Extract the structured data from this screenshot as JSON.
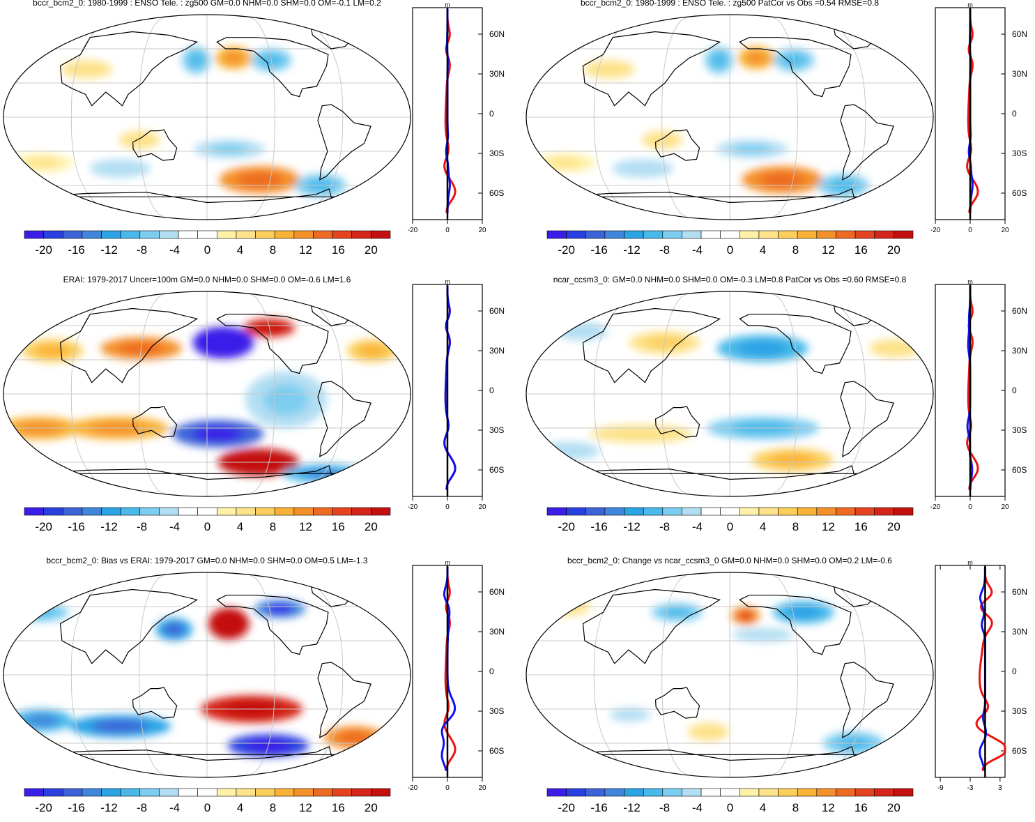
{
  "colors": {
    "frame": "#000000",
    "grid": "#c8c8c8",
    "coast": "#000000",
    "zonal_obs": "#ee1111",
    "zonal_model": "#1111ee",
    "zonal_zero": "#000000",
    "palette": [
      "#3a1ee8",
      "#2a3fe0",
      "#3c63d8",
      "#3f86dc",
      "#2ba3e5",
      "#49b9ea",
      "#7dcdf0",
      "#b2def3",
      "#ffffff",
      "#ffffff",
      "#fff2a8",
      "#fde28a",
      "#fccf5c",
      "#f9b236",
      "#f4902a",
      "#ee6a22",
      "#e54220",
      "#d52419",
      "#c40f10"
    ]
  },
  "chart_data": [
    {
      "type": "heatmap",
      "name": "bccr-hist",
      "title": "bccr_bcm2_0: 1980-1999 : ENSO Tele. : zg500 GM=0.0 NHM=0.0 SHM=0.0 OM=-0.1 LM=0.2",
      "colorbar_ticks": [
        "-20",
        "-16",
        "-12",
        "-8",
        "-4",
        "0",
        "4",
        "8",
        "12",
        "16",
        "20"
      ],
      "zonal_ticks": [
        "-20",
        "0",
        "20"
      ],
      "zonal_range": [
        -20,
        20
      ],
      "unit": "m",
      "lat_ticks": [
        "60N",
        "30N",
        "0",
        "30S",
        "60S"
      ],
      "blobs": [
        {
          "lon": 205,
          "lat": 52,
          "rx": 18,
          "ry": 10,
          "v": 8
        },
        {
          "lon": 170,
          "lat": 50,
          "rx": 14,
          "ry": 12,
          "v": -7
        },
        {
          "lon": 240,
          "lat": 50,
          "rx": 20,
          "ry": 10,
          "v": -6
        },
        {
          "lon": 70,
          "lat": 42,
          "rx": 25,
          "ry": 8,
          "v": 4
        },
        {
          "lon": 120,
          "lat": -20,
          "rx": 20,
          "ry": 8,
          "v": 4
        },
        {
          "lon": 200,
          "lat": -28,
          "rx": 35,
          "ry": 8,
          "v": -5
        },
        {
          "lon": 230,
          "lat": -55,
          "rx": 40,
          "ry": 12,
          "v": 10
        },
        {
          "lon": 290,
          "lat": -60,
          "rx": 25,
          "ry": 10,
          "v": -7
        },
        {
          "lon": 30,
          "lat": -40,
          "rx": 30,
          "ry": 8,
          "v": 3
        },
        {
          "lon": 100,
          "lat": -45,
          "rx": 30,
          "ry": 8,
          "v": -4
        }
      ]
    },
    {
      "type": "heatmap",
      "name": "bccr-fut",
      "title": "bccr_bcm2_0: 1980-1999 : ENSO Tele. : zg500 PatCor vs Obs =0.54 RMSE=0.8",
      "colorbar_ticks": [
        "-20",
        "-16",
        "-12",
        "-8",
        "-4",
        "0",
        "4",
        "8",
        "12",
        "16",
        "20"
      ],
      "zonal_ticks": [
        "-20",
        "0",
        "20"
      ],
      "zonal_range": [
        -20,
        20
      ],
      "unit": "m",
      "lat_ticks": [
        "60N",
        "30N",
        "0",
        "30S",
        "60S"
      ],
      "blobs": [
        {
          "lon": 205,
          "lat": 52,
          "rx": 18,
          "ry": 10,
          "v": 8
        },
        {
          "lon": 170,
          "lat": 50,
          "rx": 14,
          "ry": 12,
          "v": -7
        },
        {
          "lon": 240,
          "lat": 50,
          "rx": 20,
          "ry": 10,
          "v": -6
        },
        {
          "lon": 70,
          "lat": 42,
          "rx": 25,
          "ry": 8,
          "v": 4
        },
        {
          "lon": 120,
          "lat": -20,
          "rx": 20,
          "ry": 8,
          "v": 4
        },
        {
          "lon": 200,
          "lat": -28,
          "rx": 35,
          "ry": 8,
          "v": -5
        },
        {
          "lon": 230,
          "lat": -55,
          "rx": 40,
          "ry": 12,
          "v": 10
        },
        {
          "lon": 290,
          "lat": -60,
          "rx": 25,
          "ry": 10,
          "v": -7
        },
        {
          "lon": 30,
          "lat": -40,
          "rx": 30,
          "ry": 8,
          "v": 3
        },
        {
          "lon": 100,
          "lat": -45,
          "rx": 30,
          "ry": 8,
          "v": -4
        }
      ]
    },
    {
      "type": "heatmap",
      "name": "erai",
      "title": "ERAI: 1979-2017 Uncer=100m GM=0.0 NHM=0.0 SHM=0.0 OM=-0.6 LM=1.6",
      "colorbar_ticks": [
        "-20",
        "-16",
        "-12",
        "-8",
        "-4",
        "0",
        "4",
        "8",
        "12",
        "16",
        "20"
      ],
      "zonal_ticks": [
        "-20",
        "0",
        "20"
      ],
      "zonal_range": [
        -20,
        20
      ],
      "unit": "m",
      "lat_ticks": [
        "60N",
        "30N",
        "0",
        "30S",
        "60S"
      ],
      "blobs": [
        {
          "lon": 195,
          "lat": 45,
          "rx": 30,
          "ry": 14,
          "v": -20
        },
        {
          "lon": 240,
          "lat": 58,
          "rx": 25,
          "ry": 8,
          "v": 18
        },
        {
          "lon": 120,
          "lat": 40,
          "rx": 40,
          "ry": 10,
          "v": 10
        },
        {
          "lon": 40,
          "lat": 38,
          "rx": 30,
          "ry": 10,
          "v": 6
        },
        {
          "lon": 330,
          "lat": 38,
          "rx": 25,
          "ry": 10,
          "v": 6
        },
        {
          "lon": 230,
          "lat": -60,
          "rx": 40,
          "ry": 12,
          "v": 22
        },
        {
          "lon": 190,
          "lat": -35,
          "rx": 45,
          "ry": 12,
          "v": -16
        },
        {
          "lon": 100,
          "lat": -30,
          "rx": 50,
          "ry": 10,
          "v": 8
        },
        {
          "lon": 30,
          "lat": -30,
          "rx": 40,
          "ry": 10,
          "v": 8
        },
        {
          "lon": 300,
          "lat": -70,
          "rx": 40,
          "ry": 8,
          "v": -10
        },
        {
          "lon": 250,
          "lat": -5,
          "rx": 40,
          "ry": 25,
          "v": -5
        }
      ]
    },
    {
      "type": "heatmap",
      "name": "ncar-ccsm3",
      "title": "ncar_ccsm3_0: GM=0.0 NHM=0.0 SHM=0.0 OM=-0.3 LM=0.8 PatCor vs Obs =0.60 RMSE=0.8",
      "colorbar_ticks": [
        "-20",
        "-16",
        "-12",
        "-8",
        "-4",
        "0",
        "4",
        "8",
        "12",
        "16",
        "20"
      ],
      "zonal_ticks": [
        "-20",
        "0",
        "20"
      ],
      "zonal_range": [
        -20,
        20
      ],
      "unit": "m",
      "lat_ticks": [
        "60N",
        "30N",
        "0",
        "30S",
        "60S"
      ],
      "blobs": [
        {
          "lon": 210,
          "lat": 40,
          "rx": 45,
          "ry": 12,
          "v": -9
        },
        {
          "lon": 120,
          "lat": 45,
          "rx": 35,
          "ry": 10,
          "v": 5
        },
        {
          "lon": 330,
          "lat": 40,
          "rx": 25,
          "ry": 8,
          "v": 4
        },
        {
          "lon": 40,
          "lat": 55,
          "rx": 25,
          "ry": 8,
          "v": -4
        },
        {
          "lon": 210,
          "lat": -30,
          "rx": 55,
          "ry": 10,
          "v": -7
        },
        {
          "lon": 100,
          "lat": -35,
          "rx": 50,
          "ry": 8,
          "v": 4
        },
        {
          "lon": 240,
          "lat": -58,
          "rx": 40,
          "ry": 10,
          "v": 6
        },
        {
          "lon": 30,
          "lat": -50,
          "rx": 30,
          "ry": 8,
          "v": -4
        }
      ]
    },
    {
      "type": "heatmap",
      "name": "bias",
      "title": "bccr_bcm2_0: Bias vs ERAI: 1979-2017 GM=0.0 NHM=0.0 SHM=0.0 OM=0.5 LM=-1.3",
      "colorbar_ticks": [
        "-20",
        "-16",
        "-12",
        "-8",
        "-4",
        "0",
        "4",
        "8",
        "12",
        "16",
        "20"
      ],
      "zonal_ticks": [
        "-20",
        "0",
        "20"
      ],
      "zonal_range": [
        -20,
        20
      ],
      "unit": "m",
      "lat_ticks": [
        "60N",
        "30N",
        "0",
        "30S",
        "60S"
      ],
      "blobs": [
        {
          "lon": 200,
          "lat": 45,
          "rx": 20,
          "ry": 14,
          "v": 22
        },
        {
          "lon": 250,
          "lat": 58,
          "rx": 25,
          "ry": 8,
          "v": -14
        },
        {
          "lon": 150,
          "lat": 40,
          "rx": 18,
          "ry": 10,
          "v": -12
        },
        {
          "lon": 20,
          "lat": 55,
          "rx": 30,
          "ry": 8,
          "v": -6
        },
        {
          "lon": 220,
          "lat": -30,
          "rx": 50,
          "ry": 12,
          "v": 18
        },
        {
          "lon": 240,
          "lat": -62,
          "rx": 40,
          "ry": 10,
          "v": -18
        },
        {
          "lon": 100,
          "lat": -45,
          "rx": 50,
          "ry": 10,
          "v": -12
        },
        {
          "lon": 30,
          "lat": -40,
          "rx": 30,
          "ry": 10,
          "v": -10
        },
        {
          "lon": 320,
          "lat": -55,
          "rx": 30,
          "ry": 10,
          "v": 10
        }
      ]
    },
    {
      "type": "heatmap",
      "name": "change",
      "title": "bccr_bcm2_0: Change vs ncar_ccsm3_0 GM=0.0 NHM=0.0 SHM=0.0 OM=0.2 LM=-0.6",
      "colorbar_ticks": [
        "-20",
        "-16",
        "-12",
        "-8",
        "-4",
        "0",
        "4",
        "8",
        "12",
        "16",
        "20"
      ],
      "zonal_ticks": [
        "-9",
        "-3",
        "3"
      ],
      "zonal_range": [
        -10,
        4
      ],
      "unit": "m",
      "lat_ticks": [
        "60N",
        "30N",
        "0",
        "30S",
        "60S"
      ],
      "blobs": [
        {
          "lon": 195,
          "lat": 52,
          "rx": 14,
          "ry": 8,
          "v": 12
        },
        {
          "lon": 250,
          "lat": 55,
          "rx": 30,
          "ry": 10,
          "v": -8
        },
        {
          "lon": 130,
          "lat": 55,
          "rx": 25,
          "ry": 8,
          "v": -6
        },
        {
          "lon": 20,
          "lat": 60,
          "rx": 25,
          "ry": 8,
          "v": 4
        },
        {
          "lon": 210,
          "lat": 35,
          "rx": 30,
          "ry": 6,
          "v": -4
        },
        {
          "lon": 300,
          "lat": -60,
          "rx": 30,
          "ry": 10,
          "v": -7
        },
        {
          "lon": 160,
          "lat": -50,
          "rx": 20,
          "ry": 8,
          "v": 4
        },
        {
          "lon": 90,
          "lat": -35,
          "rx": 20,
          "ry": 6,
          "v": -4
        }
      ]
    }
  ]
}
